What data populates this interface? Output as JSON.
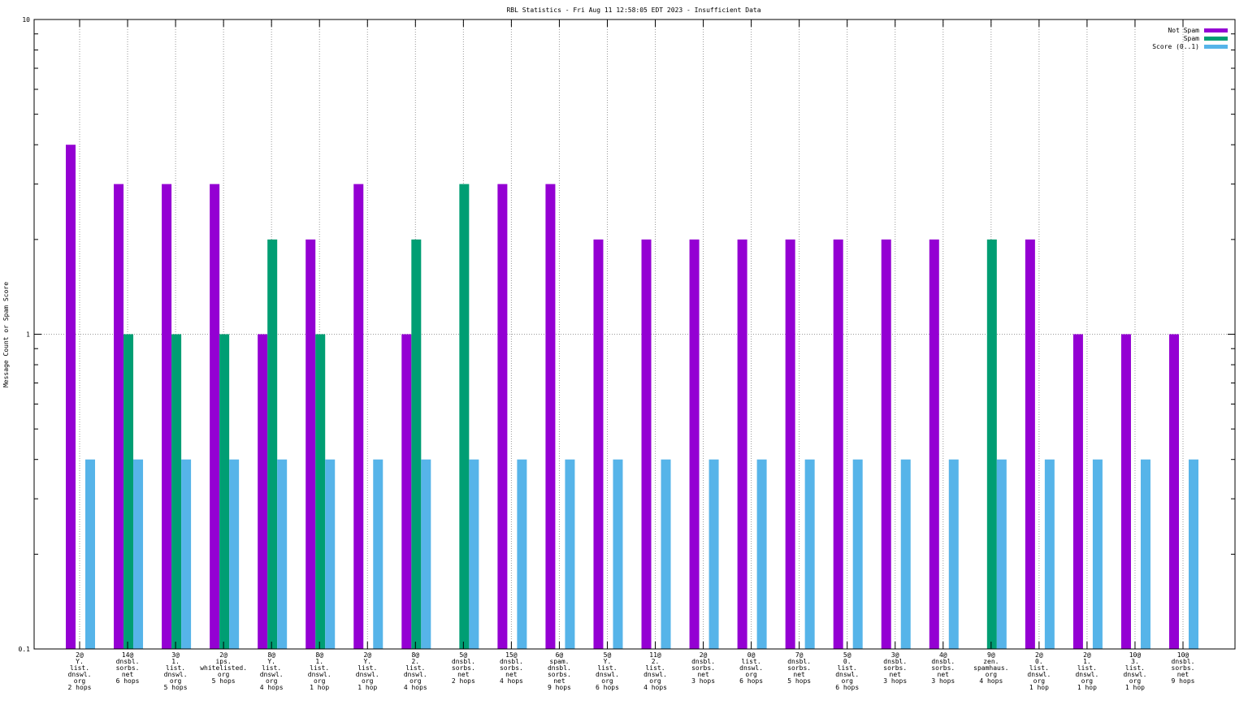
{
  "chart_data": {
    "type": "bar",
    "title": "RBL Statistics - Fri Aug 11 12:58:05 EDT 2023 - Insufficient Data",
    "ylabel": "Message Count or Spam Score",
    "xlabel": "",
    "yscale": "log",
    "ylim": [
      0.1,
      10
    ],
    "yticks": [
      "0.1",
      "1",
      "10"
    ],
    "grid": true,
    "legend_position": "top-right",
    "colors": {
      "Not Spam": "#9400d3",
      "Spam": "#009e73",
      "Score (0..1)": "#56b4e9"
    },
    "categories": [
      [
        "2@",
        "Y.",
        "list.",
        "dnswl.",
        "org",
        "2 hops"
      ],
      [
        "14@",
        "dnsbl.",
        "sorbs.",
        "net",
        "6 hops"
      ],
      [
        "3@",
        "1.",
        "list.",
        "dnswl.",
        "org",
        "5 hops"
      ],
      [
        "2@",
        "ips.",
        "whitelisted.",
        "org",
        "5 hops"
      ],
      [
        "8@",
        "Y.",
        "list.",
        "dnswl.",
        "org",
        "4 hops"
      ],
      [
        "8@",
        "1.",
        "list.",
        "dnswl.",
        "org",
        "1 hop"
      ],
      [
        "2@",
        "Y.",
        "list.",
        "dnswl.",
        "org",
        "1 hop"
      ],
      [
        "8@",
        "2.",
        "list.",
        "dnswl.",
        "org",
        "4 hops"
      ],
      [
        "5@",
        "dnsbl.",
        "sorbs.",
        "net",
        "2 hops"
      ],
      [
        "15@",
        "dnsbl.",
        "sorbs.",
        "net",
        "4 hops"
      ],
      [
        "6@",
        "spam.",
        "dnsbl.",
        "sorbs.",
        "net",
        "9 hops"
      ],
      [
        "5@",
        "Y.",
        "list.",
        "dnswl.",
        "org",
        "6 hops"
      ],
      [
        "11@",
        "2.",
        "list.",
        "dnswl.",
        "org",
        "4 hops"
      ],
      [
        "2@",
        "dnsbl.",
        "sorbs.",
        "net",
        "3 hops"
      ],
      [
        "0@",
        "list.",
        "dnswl.",
        "org",
        "6 hops"
      ],
      [
        "7@",
        "dnsbl.",
        "sorbs.",
        "net",
        "5 hops"
      ],
      [
        "5@",
        "0.",
        "list.",
        "dnswl.",
        "org",
        "6 hops"
      ],
      [
        "3@",
        "dnsbl.",
        "sorbs.",
        "net",
        "3 hops"
      ],
      [
        "4@",
        "dnsbl.",
        "sorbs.",
        "net",
        "3 hops"
      ],
      [
        "9@",
        "zen.",
        "spamhaus.",
        "org",
        "4 hops"
      ],
      [
        "2@",
        "0.",
        "list.",
        "dnswl.",
        "org",
        "1 hop"
      ],
      [
        "2@",
        "1.",
        "list.",
        "dnswl.",
        "org",
        "1 hop"
      ],
      [
        "10@",
        "3.",
        "list.",
        "dnswl.",
        "org",
        "1 hop"
      ],
      [
        "10@",
        "dnsbl.",
        "sorbs.",
        "net",
        "9 hops"
      ]
    ],
    "series": [
      {
        "name": "Not Spam",
        "values": [
          4,
          3,
          3,
          3,
          1,
          2,
          3,
          1,
          0,
          3,
          3,
          2,
          2,
          2,
          2,
          2,
          2,
          2,
          2,
          0,
          2,
          1,
          1,
          1
        ]
      },
      {
        "name": "Spam",
        "values": [
          0,
          1,
          1,
          1,
          2,
          1,
          0,
          2,
          3,
          0,
          0,
          0,
          0,
          0,
          0,
          0,
          0,
          0,
          0,
          2,
          0,
          0,
          0,
          0
        ]
      },
      {
        "name": "Score (0..1)",
        "values": [
          0.4,
          0.4,
          0.4,
          0.4,
          0.4,
          0.4,
          0.4,
          0.4,
          0.4,
          0.4,
          0.4,
          0.4,
          0.4,
          0.4,
          0.4,
          0.4,
          0.4,
          0.4,
          0.4,
          0.4,
          0.4,
          0.4,
          0.4,
          0.4
        ]
      }
    ]
  }
}
